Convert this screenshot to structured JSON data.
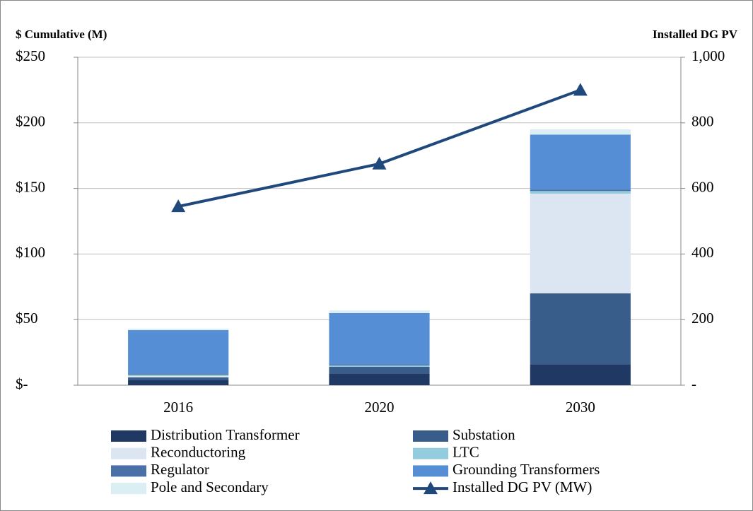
{
  "chart_data": {
    "type": "bar",
    "stacked": true,
    "y_title": "$ Cumulative (M)",
    "y2_title": "Installed DG PV",
    "categories": [
      "2016",
      "2020",
      "2030"
    ],
    "series": [
      {
        "name": "Distribution Transformer",
        "color": "#1f3864",
        "values": [
          4,
          9,
          16
        ]
      },
      {
        "name": "Substation",
        "color": "#385d8a",
        "values": [
          2,
          5,
          54
        ]
      },
      {
        "name": "Reconductoring",
        "color": "#dce6f2",
        "values": [
          1,
          0,
          76
        ]
      },
      {
        "name": "LTC",
        "color": "#93cddd",
        "values": [
          1,
          1,
          2
        ]
      },
      {
        "name": "Regulator",
        "color": "#4a70a8",
        "values": [
          1,
          1,
          1
        ]
      },
      {
        "name": "Grounding Transformers",
        "color": "#558ed5",
        "values": [
          33,
          39,
          42
        ]
      },
      {
        "name": "Pole and Secondary",
        "color": "#dbeef4",
        "values": [
          1,
          2,
          4
        ]
      },
      {
        "name": "Installed DG PV (MW)",
        "color": "#1f497d",
        "type": "line",
        "axis": "y2",
        "values": [
          545,
          675,
          900
        ]
      }
    ],
    "ylim": [
      0,
      250
    ],
    "yticks": [
      {
        "value": 0,
        "label": "$-"
      },
      {
        "value": 50,
        "label": "$50"
      },
      {
        "value": 100,
        "label": "$100"
      },
      {
        "value": 150,
        "label": "$150"
      },
      {
        "value": 200,
        "label": "$200"
      },
      {
        "value": 250,
        "label": "$250"
      }
    ],
    "y2lim": [
      0,
      1000
    ],
    "y2ticks": [
      {
        "value": 0,
        "label": "-"
      },
      200,
      400,
      600,
      800,
      {
        "value": 1000,
        "label": "1,000"
      }
    ],
    "grid": true
  }
}
